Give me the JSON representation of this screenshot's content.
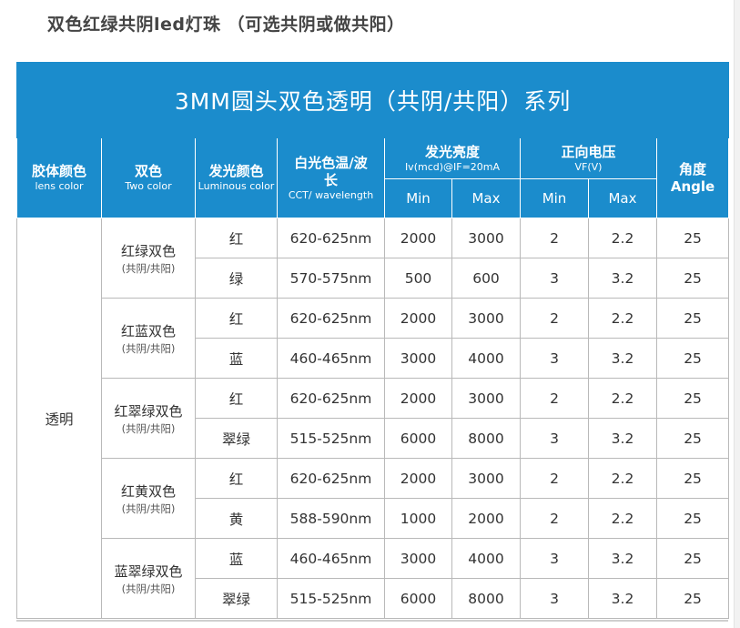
{
  "page_title": "双色红绿共阴led灯珠 （可选共阴或做共阳）",
  "table_title": "3MM圆头双色透明（共阴/共阳）系列",
  "headers": {
    "lens_color": {
      "cn": "胶体颜色",
      "en": "lens color"
    },
    "two_color": {
      "cn": "双色",
      "en": "Two color"
    },
    "luminous_color": {
      "cn": "发光颜色",
      "en": "Luminous color"
    },
    "cct": {
      "cn": "白光色温/波长",
      "en": "CCT/ wavelength"
    },
    "brightness": {
      "cn": "发光亮度",
      "en": "Iv(mcd)@IF=20mA"
    },
    "voltage": {
      "cn": "正向电压",
      "en": "VF(V)"
    },
    "angle": {
      "cn": "角度",
      "en": "Angle"
    },
    "min": "Min",
    "max": "Max"
  },
  "lens_value": "透明",
  "groups": [
    {
      "name": "红绿双色",
      "sub": "(共阴/共阳)",
      "rows": [
        {
          "color": "红",
          "wavelength": "620-625nm",
          "iv_min": "2000",
          "iv_max": "3000",
          "vf_min": "2",
          "vf_max": "2.2",
          "angle": "25"
        },
        {
          "color": "绿",
          "wavelength": "570-575nm",
          "iv_min": "500",
          "iv_max": "600",
          "vf_min": "3",
          "vf_max": "3.2",
          "angle": "25"
        }
      ]
    },
    {
      "name": "红蓝双色",
      "sub": "(共阴/共阳)",
      "rows": [
        {
          "color": "红",
          "wavelength": "620-625nm",
          "iv_min": "2000",
          "iv_max": "3000",
          "vf_min": "2",
          "vf_max": "2.2",
          "angle": "25"
        },
        {
          "color": "蓝",
          "wavelength": "460-465nm",
          "iv_min": "3000",
          "iv_max": "4000",
          "vf_min": "3",
          "vf_max": "3.2",
          "angle": "25"
        }
      ]
    },
    {
      "name": "红翠绿双色",
      "sub": "(共阴/共阳)",
      "rows": [
        {
          "color": "红",
          "wavelength": "620-625nm",
          "iv_min": "2000",
          "iv_max": "3000",
          "vf_min": "2",
          "vf_max": "2.2",
          "angle": "25"
        },
        {
          "color": "翠绿",
          "wavelength": "515-525nm",
          "iv_min": "6000",
          "iv_max": "8000",
          "vf_min": "3",
          "vf_max": "3.2",
          "angle": "25"
        }
      ]
    },
    {
      "name": "红黄双色",
      "sub": "(共阴/共阳)",
      "rows": [
        {
          "color": "红",
          "wavelength": "620-625nm",
          "iv_min": "2000",
          "iv_max": "3000",
          "vf_min": "2",
          "vf_max": "2.2",
          "angle": "25"
        },
        {
          "color": "黄",
          "wavelength": "588-590nm",
          "iv_min": "1000",
          "iv_max": "2000",
          "vf_min": "2",
          "vf_max": "2.2",
          "angle": "25"
        }
      ]
    },
    {
      "name": "蓝翠绿双色",
      "sub": "(共阴/共阳)",
      "rows": [
        {
          "color": "蓝",
          "wavelength": "460-465nm",
          "iv_min": "3000",
          "iv_max": "4000",
          "vf_min": "3",
          "vf_max": "3.2",
          "angle": "25"
        },
        {
          "color": "翠绿",
          "wavelength": "515-525nm",
          "iv_min": "6000",
          "iv_max": "8000",
          "vf_min": "3",
          "vf_max": "3.2",
          "angle": "25"
        }
      ]
    }
  ],
  "colors": {
    "header_bg": "#1b8ccc",
    "header_text": "#ffffff",
    "border": "#b9b9b9"
  }
}
